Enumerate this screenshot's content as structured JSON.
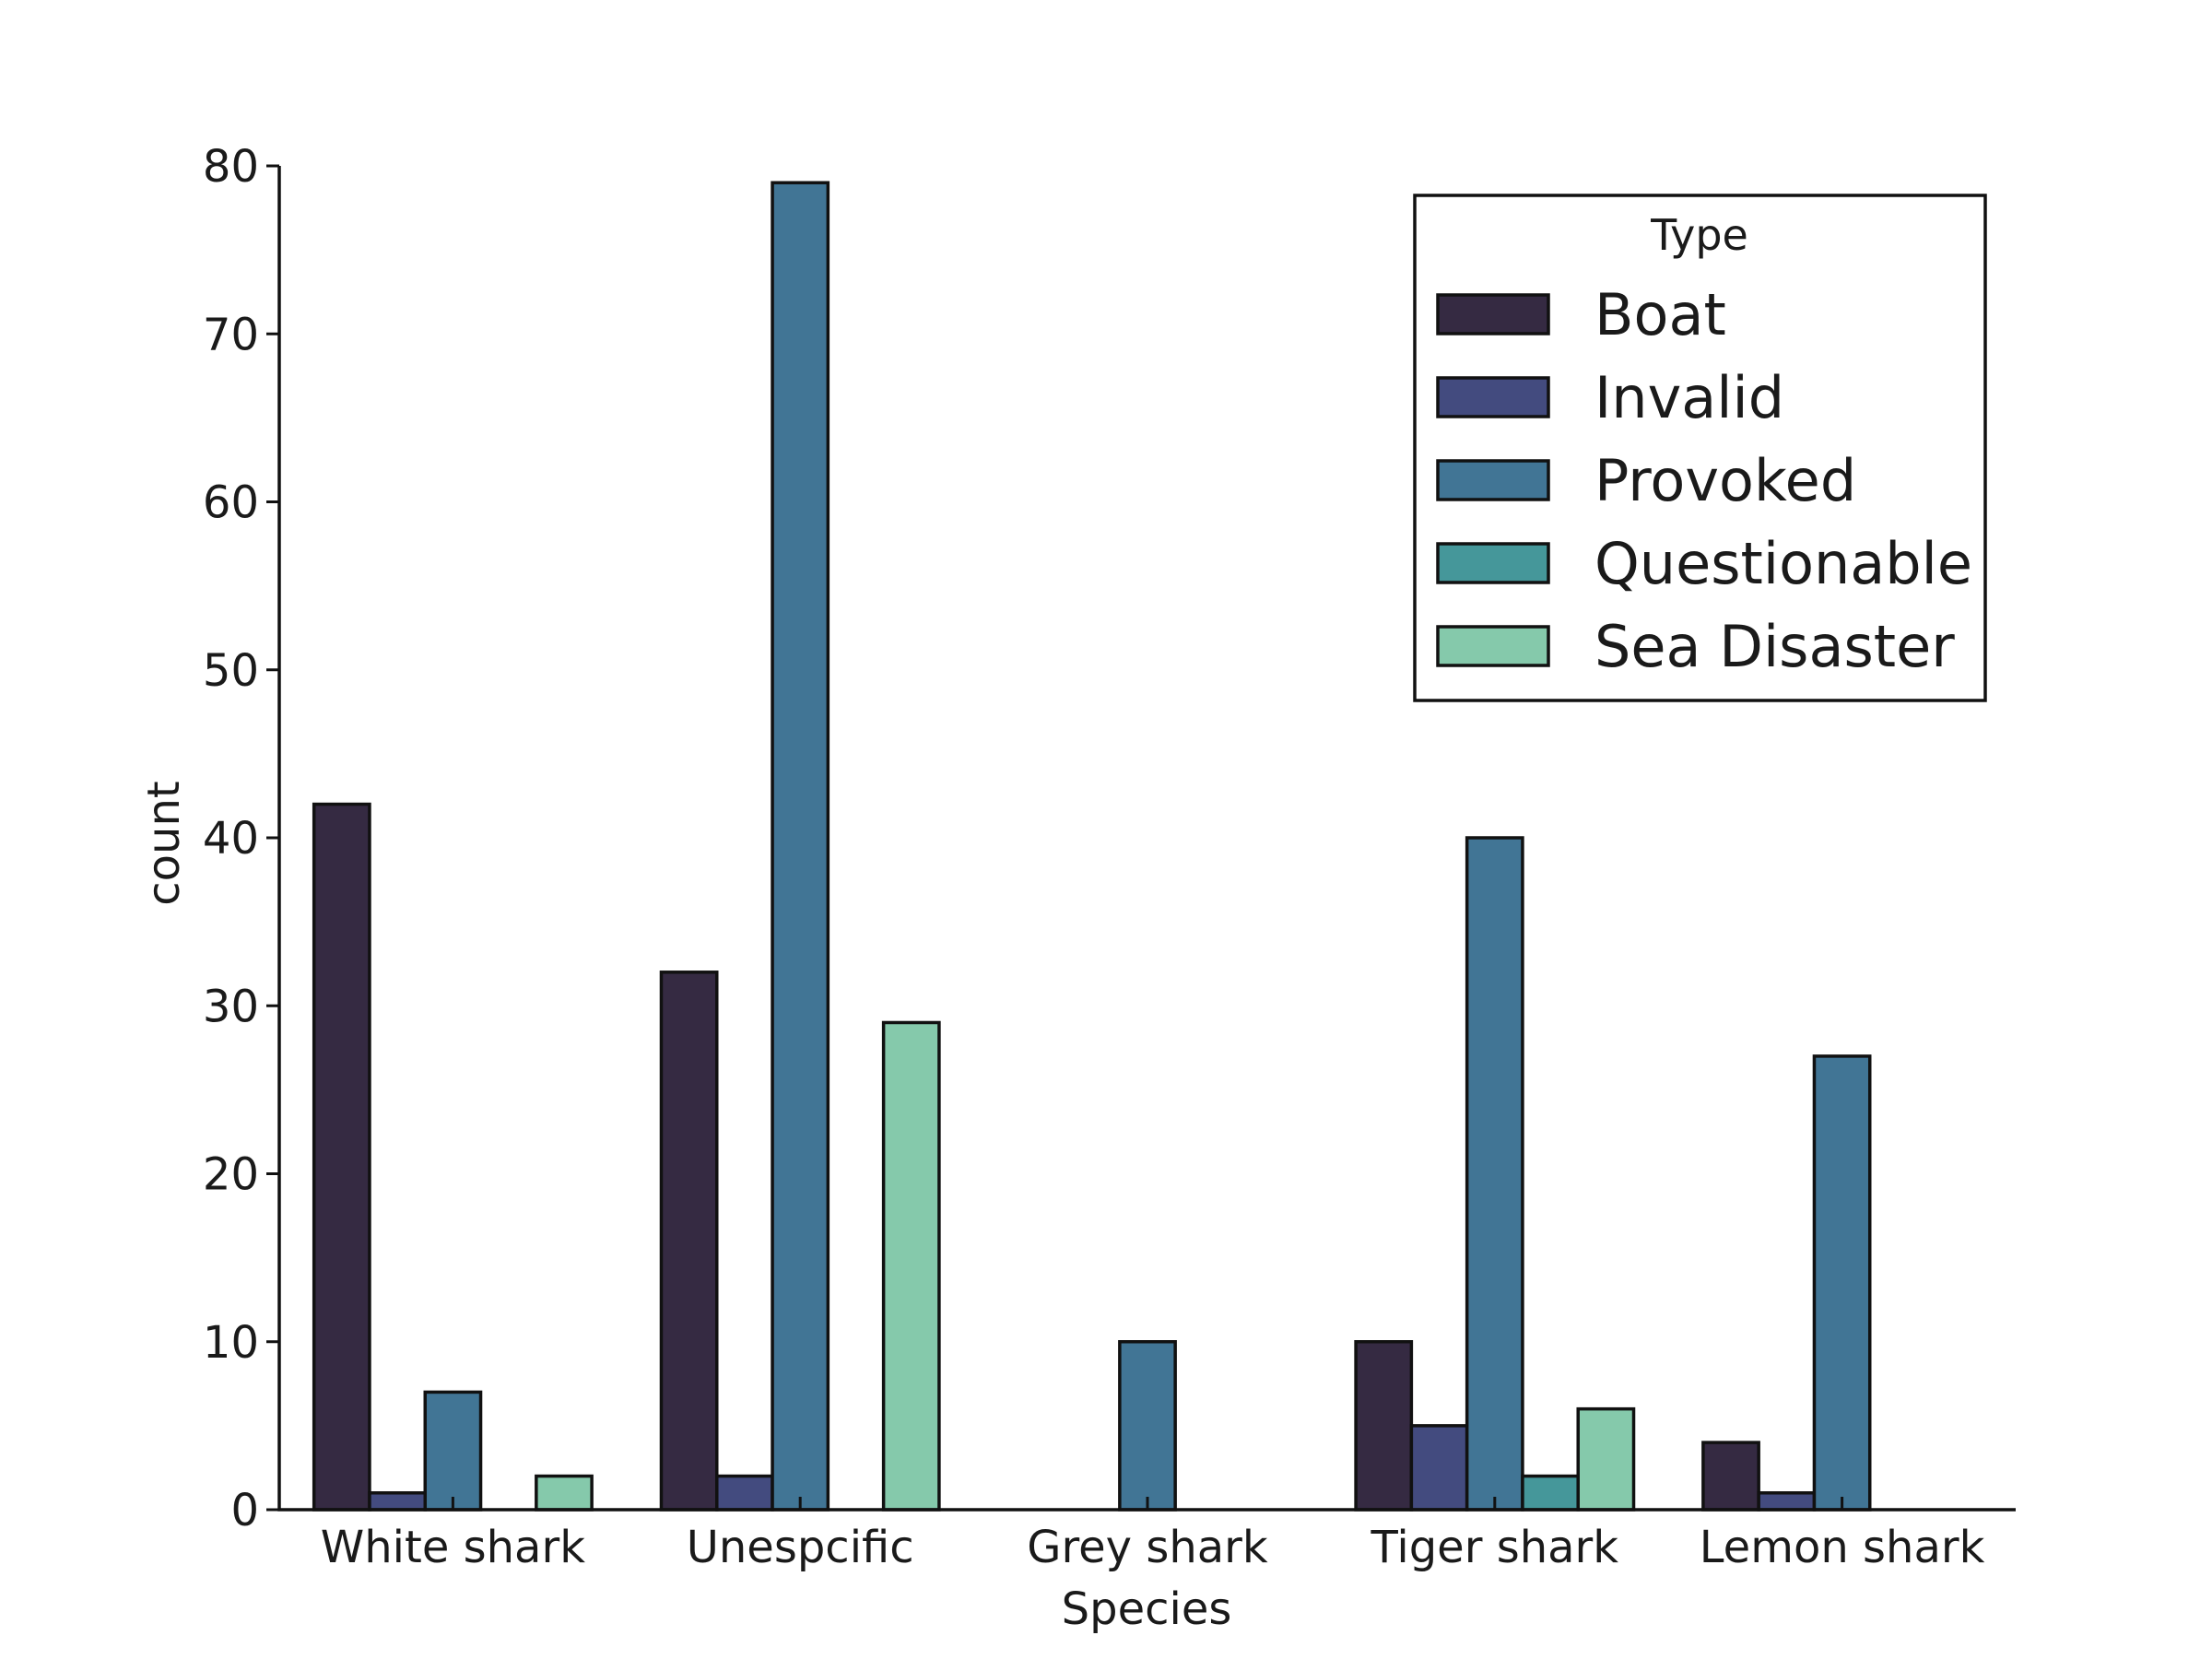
{
  "chart_data": {
    "type": "bar",
    "title": "",
    "xlabel": "Species",
    "ylabel": "count",
    "categories": [
      "White shark",
      "Unespcific",
      "Grey shark",
      "Tiger shark",
      "Lemon shark"
    ],
    "series": [
      {
        "name": "Boat",
        "color": "#352a42",
        "values": [
          42,
          32,
          0,
          10,
          4
        ]
      },
      {
        "name": "Invalid",
        "color": "#434b7f",
        "values": [
          1,
          2,
          0,
          5,
          1
        ]
      },
      {
        "name": "Provoked",
        "color": "#417595",
        "values": [
          7,
          79,
          10,
          40,
          27
        ]
      },
      {
        "name": "Questionable",
        "color": "#45979a",
        "values": [
          0,
          0,
          0,
          2,
          0
        ]
      },
      {
        "name": "Sea Disaster",
        "color": "#85c9ab",
        "values": [
          2,
          29,
          0,
          6,
          0
        ]
      }
    ],
    "ylim": [
      0,
      80
    ],
    "yticks": [
      0,
      10,
      20,
      30,
      40,
      50,
      60,
      70,
      80
    ],
    "legend": {
      "title": "Type",
      "position": "top-right"
    },
    "grid": false
  }
}
